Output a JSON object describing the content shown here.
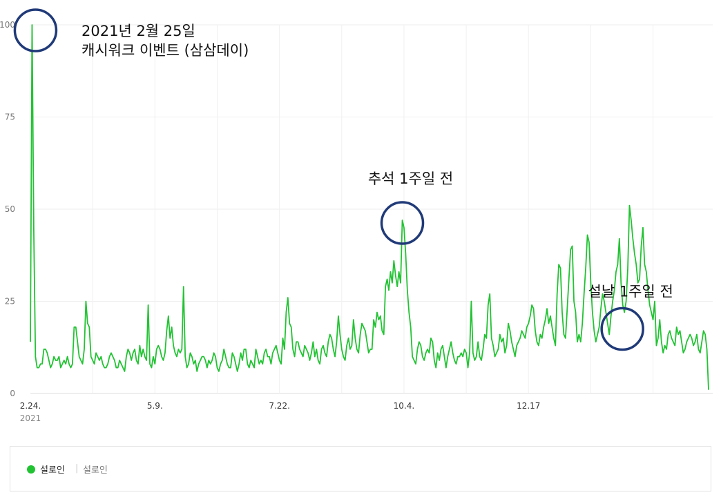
{
  "chart_data": {
    "type": "line",
    "title": "",
    "xlabel": "",
    "ylabel": "",
    "ylim": [
      0,
      100
    ],
    "yticks": [
      "0",
      "25",
      "50",
      "75",
      "100"
    ],
    "x_tick_labels": [
      {
        "index": 0,
        "label": "2.24.",
        "sub": "2021"
      },
      {
        "index": 74,
        "label": "5.9."
      },
      {
        "index": 148,
        "label": "7.22."
      },
      {
        "index": 222,
        "label": "10.4."
      },
      {
        "index": 296,
        "label": "12.17"
      }
    ],
    "grid": true,
    "legend": {
      "position": "bottom",
      "entries": [
        {
          "label": "설로인",
          "sub": "설로인"
        }
      ]
    },
    "series": [
      {
        "name": "설로인",
        "color": "#22c333",
        "values": [
          14,
          100,
          45,
          10,
          7,
          7,
          8,
          8,
          12,
          12,
          11,
          9,
          7,
          8,
          10,
          9,
          9,
          10,
          7,
          8,
          9,
          8,
          10,
          8,
          7,
          8,
          18,
          18,
          14,
          10,
          9,
          8,
          12,
          25,
          19,
          18,
          10,
          9,
          8,
          11,
          10,
          9,
          10,
          8,
          7,
          7,
          8,
          10,
          11,
          10,
          9,
          7,
          7,
          9,
          8,
          7,
          6,
          10,
          12,
          11,
          9,
          11,
          12,
          9,
          8,
          13,
          10,
          12,
          10,
          9,
          24,
          8,
          7,
          10,
          8,
          12,
          13,
          12,
          10,
          9,
          11,
          17,
          21,
          15,
          18,
          13,
          11,
          10,
          12,
          11,
          12,
          29,
          10,
          7,
          8,
          11,
          10,
          8,
          9,
          6,
          8,
          9,
          10,
          10,
          9,
          7,
          9,
          8,
          9,
          11,
          10,
          7,
          6,
          8,
          9,
          12,
          10,
          8,
          7,
          7,
          11,
          10,
          8,
          6,
          8,
          11,
          9,
          12,
          12,
          8,
          7,
          9,
          8,
          7,
          12,
          10,
          8,
          9,
          8,
          11,
          12,
          10,
          10,
          8,
          11,
          12,
          13,
          11,
          9,
          8,
          15,
          12,
          22,
          26,
          19,
          18,
          12,
          10,
          14,
          14,
          12,
          11,
          10,
          13,
          12,
          11,
          9,
          11,
          14,
          10,
          12,
          9,
          8,
          12,
          13,
          11,
          10,
          14,
          16,
          15,
          12,
          10,
          14,
          21,
          16,
          12,
          10,
          9,
          13,
          15,
          12,
          13,
          20,
          15,
          12,
          11,
          16,
          19,
          18,
          17,
          14,
          11,
          12,
          12,
          20,
          18,
          22,
          20,
          21,
          17,
          16,
          29,
          31,
          28,
          33,
          30,
          36,
          32,
          29,
          33,
          30,
          47,
          45,
          38,
          28,
          22,
          18,
          10,
          9,
          8,
          12,
          14,
          13,
          10,
          9,
          11,
          12,
          11,
          15,
          14,
          9,
          7,
          11,
          9,
          12,
          13,
          10,
          7,
          10,
          12,
          14,
          11,
          9,
          8,
          10,
          10,
          11,
          10,
          12,
          11,
          7,
          11,
          25,
          11,
          9,
          10,
          14,
          10,
          9,
          12,
          16,
          15,
          24,
          27,
          15,
          13,
          10,
          11,
          12,
          16,
          14,
          15,
          11,
          13,
          19,
          17,
          14,
          12,
          10,
          13,
          14,
          15,
          17,
          16,
          15,
          18,
          19,
          21,
          24,
          23,
          17,
          14,
          13,
          16,
          15,
          18,
          20,
          23,
          19,
          21,
          18,
          15,
          13,
          27,
          35,
          34,
          22,
          16,
          15,
          23,
          31,
          39,
          40,
          25,
          22,
          14,
          16,
          14,
          19,
          27,
          34,
          43,
          41,
          30,
          22,
          17,
          14,
          16,
          18,
          23,
          27,
          25,
          22,
          19,
          16,
          21,
          25,
          28,
          33,
          35,
          42,
          30,
          24,
          22,
          25,
          34,
          51,
          47,
          42,
          38,
          35,
          30,
          31,
          40,
          45,
          35,
          33,
          28,
          24,
          22,
          20,
          25,
          13,
          15,
          20,
          14,
          11,
          13,
          12,
          16,
          17,
          15,
          14,
          13,
          18,
          16,
          17,
          14,
          11,
          12,
          14,
          15,
          16,
          15,
          13,
          14,
          16,
          12,
          11,
          14,
          17,
          16,
          12,
          1
        ]
      }
    ],
    "annotations": [
      {
        "index": 1,
        "lines": [
          "2021년 2월 25일",
          "캐시워크 이벤트 (삼삼데이)"
        ]
      },
      {
        "index": 221,
        "lines": [
          "추석 1주일 전"
        ]
      },
      {
        "index": 353,
        "lines": [
          "설날 1주일 전"
        ]
      }
    ],
    "highlight_color": "#203a78"
  }
}
